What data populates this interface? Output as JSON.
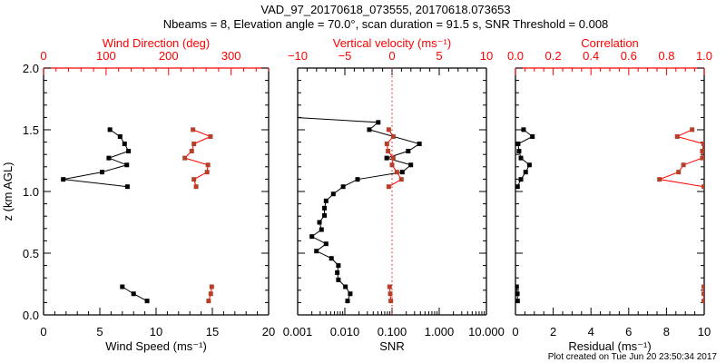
{
  "title_line1": "VAD_97_20170618_073555, 20170618.073653",
  "title_line2": "Nbeams = 8, Elevation angle = 70.0°, scan duration = 91.5 s, SNR Threshold = 0.008",
  "ylabel": "z (km AGL)",
  "footer": "Plot created on Tue Jun 20 23:50:34 2017",
  "colors": {
    "axis": "#000000",
    "secondary": "#ff0000",
    "secondary_marker": "#b5402a"
  },
  "chart_data": [
    {
      "type": "line",
      "ylim": [
        0,
        2.0
      ],
      "yticks": [
        "0.0",
        "0.5",
        "1.0",
        "1.5",
        "2.0"
      ],
      "bottom_axis": {
        "label": "Wind Speed (ms⁻¹)",
        "scale": "linear",
        "lim": [
          0,
          20
        ],
        "ticks": [
          "0",
          "5",
          "10",
          "15",
          "20"
        ]
      },
      "top_axis": {
        "label": "Wind Direction (deg)",
        "scale": "linear",
        "lim": [
          0,
          360
        ],
        "ticks": [
          "0",
          "100",
          "200",
          "300"
        ]
      },
      "series": [
        {
          "name": "Wind Speed",
          "axis": "bottom",
          "color": "black",
          "segments": [
            [
              [
                1.501,
                5.9
              ],
              [
                1.445,
                6.8
              ],
              [
                1.386,
                7.2
              ],
              [
                1.327,
                7.55
              ],
              [
                1.271,
                5.8
              ],
              [
                1.215,
                7.4
              ],
              [
                1.157,
                5.2
              ],
              [
                1.098,
                1.75
              ],
              [
                1.039,
                7.45
              ]
            ],
            [
              [
                0.228,
                7.0
              ],
              [
                0.171,
                8.0
              ],
              [
                0.113,
                9.2
              ]
            ]
          ]
        },
        {
          "name": "Wind Direction",
          "axis": "top",
          "color": "red",
          "segments": [
            [
              [
                1.501,
                239
              ],
              [
                1.445,
                267
              ],
              [
                1.386,
                240.5
              ],
              [
                1.327,
                237
              ],
              [
                1.271,
                226
              ],
              [
                1.215,
                263
              ],
              [
                1.157,
                261.6
              ],
              [
                1.098,
                240.5
              ],
              [
                1.039,
                244
              ]
            ],
            [
              [
                0.228,
                269
              ],
              [
                0.171,
                267.5
              ],
              [
                0.113,
                264
              ]
            ]
          ]
        }
      ]
    },
    {
      "type": "line",
      "ylim": [
        0,
        2.0
      ],
      "bottom_axis": {
        "label": "SNR",
        "scale": "log",
        "lim": [
          0.001,
          10
        ],
        "ticks": [
          "0.001",
          "0.010",
          "0.100",
          "1.000",
          "10.000"
        ]
      },
      "top_axis": {
        "label": "Vertical velocity (ms⁻¹)",
        "scale": "linear",
        "lim": [
          -10,
          10
        ],
        "ticks": [
          "−10",
          "−5",
          "0",
          "5",
          "10"
        ]
      },
      "reference_line": {
        "axis": "top",
        "value": 0,
        "style": "dotted",
        "color": "red"
      },
      "series": [
        {
          "name": "SNR",
          "axis": "bottom",
          "color": "black",
          "segments": [
            [
              [
                1.599,
                0.0005
              ],
              [
                1.56,
                0.051
              ],
              [
                1.501,
                0.033
              ],
              [
                1.386,
                0.38
              ],
              [
                1.327,
                0.22
              ],
              [
                1.271,
                0.077
              ],
              [
                1.215,
                0.25
              ],
              [
                1.157,
                0.165
              ],
              [
                1.098,
                0.0186
              ],
              [
                1.039,
                0.0092
              ],
              [
                0.98,
                0.0057
              ],
              [
                0.924,
                0.004
              ],
              [
                0.865,
                0.0037
              ],
              [
                0.806,
                0.0037
              ],
              [
                0.75,
                0.0029
              ],
              [
                0.691,
                0.0032
              ],
              [
                0.635,
                0.002
              ],
              [
                0.576,
                0.004
              ],
              [
                0.517,
                0.0025
              ],
              [
                0.458,
                0.0052
              ],
              [
                0.4,
                0.0073
              ],
              [
                0.343,
                0.0069
              ],
              [
                0.284,
                0.0073
              ],
              [
                0.228,
                0.0103
              ],
              [
                0.171,
                0.013
              ],
              [
                0.113,
                0.0114
              ]
            ]
          ]
        },
        {
          "name": "Vertical velocity",
          "axis": "top",
          "color": "red",
          "segments": [
            [
              [
                1.501,
                -0.35
              ],
              [
                1.445,
                0.13
              ],
              [
                1.386,
                -0.55
              ],
              [
                1.327,
                -0.42
              ],
              [
                1.271,
                0.13
              ],
              [
                1.215,
                0.0
              ],
              [
                1.157,
                0.51
              ],
              [
                1.098,
                0.99
              ],
              [
                1.039,
                -0.35
              ]
            ],
            [
              [
                0.228,
                -0.26
              ],
              [
                0.171,
                -0.19
              ],
              [
                0.113,
                -0.13
              ]
            ]
          ]
        }
      ]
    },
    {
      "type": "line",
      "ylim": [
        0,
        2.0
      ],
      "bottom_axis": {
        "label": "Residual (ms⁻¹)",
        "scale": "linear",
        "lim": [
          0,
          10
        ],
        "ticks": [
          "0",
          "2",
          "4",
          "6",
          "8",
          "10"
        ]
      },
      "top_axis": {
        "label": "Correlation",
        "scale": "linear",
        "lim": [
          0,
          1.0
        ],
        "ticks": [
          "0.0",
          "0.2",
          "0.4",
          "0.6",
          "0.8",
          "1.0"
        ]
      },
      "series": [
        {
          "name": "Residual",
          "axis": "bottom",
          "color": "black",
          "segments": [
            [
              [
                1.501,
                0.43
              ],
              [
                1.445,
                0.9
              ],
              [
                1.386,
                0.14
              ],
              [
                1.327,
                0.19
              ],
              [
                1.271,
                0.29
              ],
              [
                1.215,
                0.74
              ],
              [
                1.157,
                0.54
              ],
              [
                1.098,
                0.29
              ],
              [
                1.039,
                0.11
              ]
            ],
            [
              [
                0.228,
                0.06
              ],
              [
                0.171,
                0.1
              ],
              [
                0.113,
                0.11
              ]
            ]
          ]
        },
        {
          "name": "Correlation",
          "axis": "top",
          "color": "red",
          "segments": [
            [
              [
                1.501,
                0.936
              ],
              [
                1.445,
                0.857
              ],
              [
                1.386,
                0.997
              ],
              [
                1.327,
                0.99
              ],
              [
                1.271,
                0.99
              ],
              [
                1.215,
                0.89
              ],
              [
                1.157,
                0.864
              ],
              [
                1.098,
                0.763
              ],
              [
                1.039,
                0.998
              ]
            ],
            [
              [
                0.228,
                0.998
              ],
              [
                0.171,
                0.998
              ],
              [
                0.113,
                0.998
              ]
            ]
          ]
        }
      ]
    }
  ]
}
